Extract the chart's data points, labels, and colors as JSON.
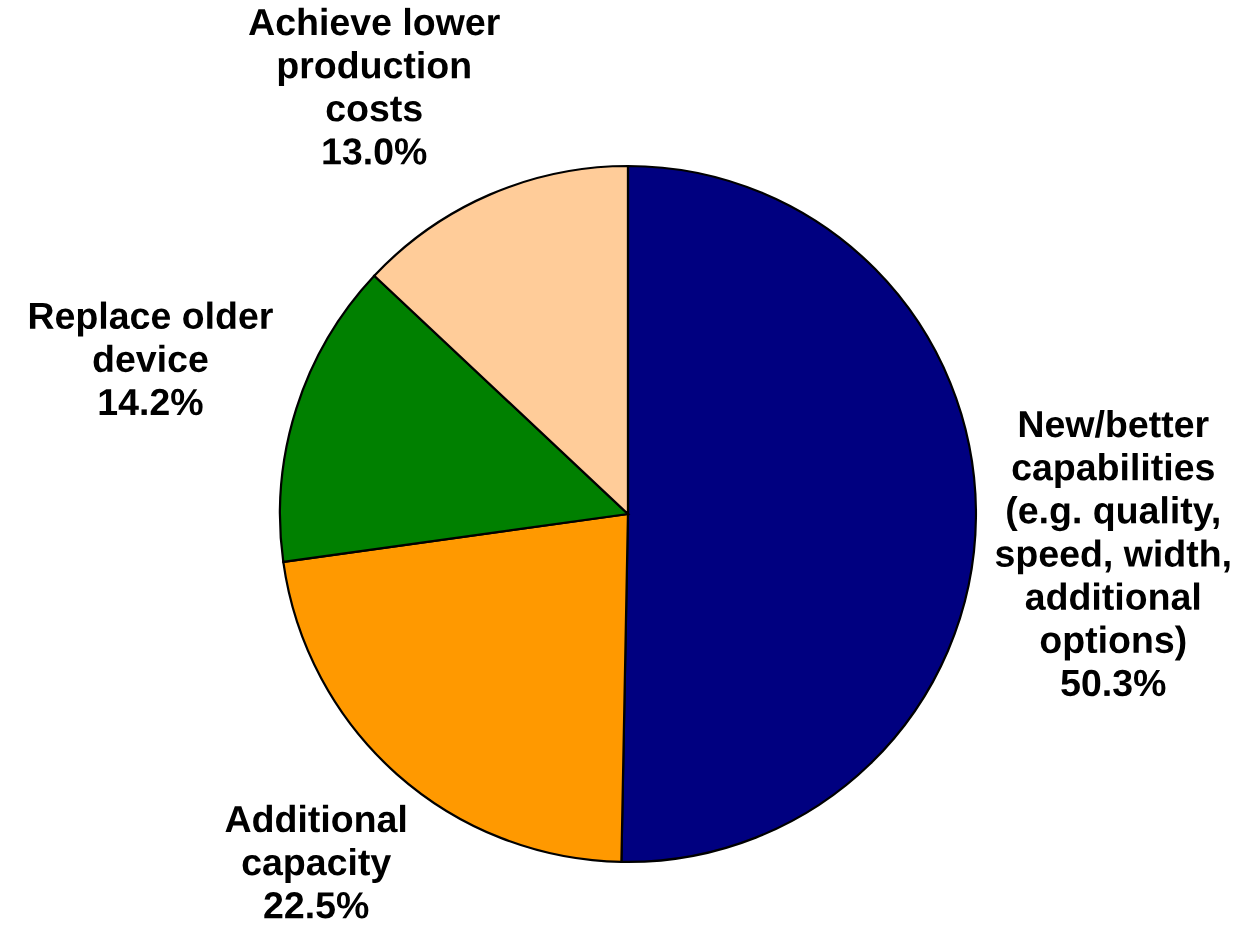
{
  "chart_data": {
    "type": "pie",
    "categories": [
      "New/better\ncapabilities\n(e.g. quality,\nspeed, width,\nadditional\noptions)",
      "Additional\ncapacity",
      "Replace older\ndevice",
      "Achieve lower\nproduction\ncosts"
    ],
    "values": [
      50.3,
      22.5,
      14.2,
      13.0
    ],
    "colors": [
      "#000080",
      "#ff9900",
      "#008000",
      "#ffcc99"
    ],
    "value_labels": [
      "50.3%",
      "22.5%",
      "14.2%",
      "13.0%"
    ]
  }
}
